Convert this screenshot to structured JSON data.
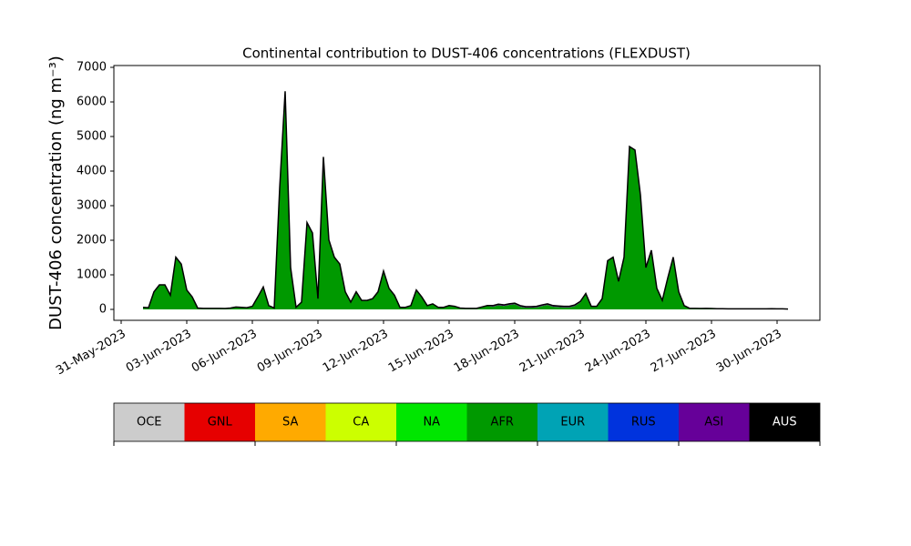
{
  "chart_data": {
    "type": "stacked_area",
    "title": "Continental contribution to DUST-406 concentrations (FLEXDUST)",
    "y_label": "DUST-406 concentration (ng m⁻³)",
    "x": [
      "2023-06-01 00:00",
      "2023-06-01 06:00",
      "2023-06-01 12:00",
      "2023-06-01 18:00",
      "2023-06-02 00:00",
      "2023-06-02 06:00",
      "2023-06-02 12:00",
      "2023-06-02 18:00",
      "2023-06-03 00:00",
      "2023-06-03 06:00",
      "2023-06-03 12:00",
      "2023-06-03 18:00",
      "2023-06-04 00:00",
      "2023-06-04 06:00",
      "2023-06-04 12:00",
      "2023-06-04 18:00",
      "2023-06-05 00:00",
      "2023-06-05 06:00",
      "2023-06-05 12:00",
      "2023-06-05 18:00",
      "2023-06-06 00:00",
      "2023-06-06 06:00",
      "2023-06-06 12:00",
      "2023-06-06 18:00",
      "2023-06-07 00:00",
      "2023-06-07 06:00",
      "2023-06-07 12:00",
      "2023-06-07 18:00",
      "2023-06-08 00:00",
      "2023-06-08 06:00",
      "2023-06-08 12:00",
      "2023-06-08 18:00",
      "2023-06-09 00:00",
      "2023-06-09 06:00",
      "2023-06-09 12:00",
      "2023-06-09 18:00",
      "2023-06-10 00:00",
      "2023-06-10 06:00",
      "2023-06-10 12:00",
      "2023-06-10 18:00",
      "2023-06-11 00:00",
      "2023-06-11 06:00",
      "2023-06-11 12:00",
      "2023-06-11 18:00",
      "2023-06-12 00:00",
      "2023-06-12 06:00",
      "2023-06-12 12:00",
      "2023-06-12 18:00",
      "2023-06-13 00:00",
      "2023-06-13 06:00",
      "2023-06-13 12:00",
      "2023-06-13 18:00",
      "2023-06-14 00:00",
      "2023-06-14 06:00",
      "2023-06-14 12:00",
      "2023-06-14 18:00",
      "2023-06-15 00:00",
      "2023-06-15 06:00",
      "2023-06-15 12:00",
      "2023-06-15 18:00",
      "2023-06-16 00:00",
      "2023-06-16 06:00",
      "2023-06-16 12:00",
      "2023-06-16 18:00",
      "2023-06-17 00:00",
      "2023-06-17 06:00",
      "2023-06-17 12:00",
      "2023-06-17 18:00",
      "2023-06-18 00:00",
      "2023-06-18 06:00",
      "2023-06-18 12:00",
      "2023-06-18 18:00",
      "2023-06-19 00:00",
      "2023-06-19 06:00",
      "2023-06-19 12:00",
      "2023-06-19 18:00",
      "2023-06-20 00:00",
      "2023-06-20 06:00",
      "2023-06-20 12:00",
      "2023-06-20 18:00",
      "2023-06-21 00:00",
      "2023-06-21 06:00",
      "2023-06-21 12:00",
      "2023-06-21 18:00",
      "2023-06-22 00:00",
      "2023-06-22 06:00",
      "2023-06-22 12:00",
      "2023-06-22 18:00",
      "2023-06-23 00:00",
      "2023-06-23 06:00",
      "2023-06-23 12:00",
      "2023-06-23 18:00",
      "2023-06-24 00:00",
      "2023-06-24 06:00",
      "2023-06-24 12:00",
      "2023-06-24 18:00",
      "2023-06-25 00:00",
      "2023-06-25 06:00",
      "2023-06-25 12:00",
      "2023-06-25 18:00",
      "2023-06-26 00:00",
      "2023-06-26 06:00",
      "2023-06-26 12:00",
      "2023-06-26 18:00",
      "2023-06-27 00:00",
      "2023-06-27 06:00",
      "2023-06-27 12:00",
      "2023-06-27 18:00",
      "2023-06-28 00:00",
      "2023-06-28 06:00",
      "2023-06-28 12:00",
      "2023-06-28 18:00",
      "2023-06-29 00:00",
      "2023-06-29 06:00",
      "2023-06-29 12:00",
      "2023-06-29 18:00",
      "2023-06-30 00:00",
      "2023-06-30 06:00",
      "2023-06-30 12:00"
    ],
    "series": [
      {
        "name": "AFR",
        "color": "#009900",
        "values": [
          50,
          40,
          500,
          700,
          700,
          400,
          1500,
          1300,
          550,
          350,
          30,
          20,
          20,
          20,
          20,
          15,
          30,
          60,
          50,
          40,
          80,
          350,
          640,
          100,
          30,
          3500,
          6300,
          1200,
          50,
          200,
          2500,
          2200,
          300,
          4400,
          2000,
          1500,
          1300,
          500,
          200,
          500,
          250,
          250,
          300,
          500,
          1100,
          600,
          400,
          50,
          50,
          100,
          550,
          350,
          100,
          150,
          50,
          50,
          100,
          80,
          30,
          20,
          20,
          20,
          60,
          100,
          80,
          120,
          100,
          130,
          150,
          80,
          50,
          50,
          60,
          100,
          130,
          80,
          70,
          60,
          60,
          100,
          200,
          450,
          80,
          80,
          300,
          1400,
          1500,
          800,
          1500,
          4700,
          4600,
          3300,
          1200,
          1700,
          600,
          250,
          900,
          1500,
          500,
          100,
          20,
          20,
          15,
          20,
          15,
          10,
          10,
          5,
          5,
          5,
          5,
          5,
          5,
          5,
          5,
          10,
          5,
          5,
          0
        ]
      },
      {
        "name": "ASI",
        "color": "#660099",
        "values": [
          10,
          10,
          10,
          10,
          10,
          10,
          10,
          10,
          10,
          10,
          10,
          10,
          10,
          10,
          10,
          10,
          10,
          10,
          10,
          10,
          10,
          10,
          10,
          10,
          10,
          10,
          10,
          10,
          10,
          10,
          10,
          10,
          10,
          10,
          10,
          10,
          10,
          10,
          10,
          10,
          10,
          10,
          10,
          10,
          10,
          10,
          10,
          10,
          10,
          10,
          10,
          10,
          10,
          10,
          10,
          10,
          10,
          10,
          10,
          10,
          10,
          10,
          10,
          10,
          30,
          30,
          30,
          30,
          30,
          30,
          30,
          30,
          30,
          30,
          30,
          30,
          30,
          30,
          30,
          30,
          30,
          10,
          10,
          10,
          10,
          10,
          10,
          10,
          10,
          10,
          10,
          10,
          10,
          10,
          10,
          10,
          10,
          10,
          10,
          10,
          10,
          10,
          10,
          10,
          10,
          10,
          10,
          10,
          10,
          10,
          10,
          10,
          10,
          10,
          10,
          10,
          10,
          10,
          10
        ]
      }
    ],
    "xlim": [
      "2023-05-30 16:00",
      "2023-07-01 23:00"
    ],
    "xticks": [
      {
        "value": "2023-05-31 00:00",
        "label": "31-May-2023"
      },
      {
        "value": "2023-06-03 00:00",
        "label": "03-Jun-2023"
      },
      {
        "value": "2023-06-06 00:00",
        "label": "06-Jun-2023"
      },
      {
        "value": "2023-06-09 00:00",
        "label": "09-Jun-2023"
      },
      {
        "value": "2023-06-12 00:00",
        "label": "12-Jun-2023"
      },
      {
        "value": "2023-06-15 00:00",
        "label": "15-Jun-2023"
      },
      {
        "value": "2023-06-18 00:00",
        "label": "18-Jun-2023"
      },
      {
        "value": "2023-06-21 00:00",
        "label": "21-Jun-2023"
      },
      {
        "value": "2023-06-24 00:00",
        "label": "24-Jun-2023"
      },
      {
        "value": "2023-06-27 00:00",
        "label": "27-Jun-2023"
      },
      {
        "value": "2023-06-30 00:00",
        "label": "30-Jun-2023"
      }
    ],
    "ylim": [
      -316,
      7053
    ],
    "yticks": [
      0,
      1000,
      2000,
      3000,
      4000,
      5000,
      6000,
      7000
    ],
    "colorbar": {
      "labels": [
        "OCE",
        "GNL",
        "SA",
        "CA",
        "NA",
        "AFR",
        "EUR",
        "RUS",
        "ASI",
        "AUS"
      ],
      "colors": [
        "#cccccc",
        "#e60000",
        "#ffaa00",
        "#ccff00",
        "#00e600",
        "#009900",
        "#00a3b5",
        "#0033dd",
        "#660099",
        "#000000"
      ]
    }
  }
}
